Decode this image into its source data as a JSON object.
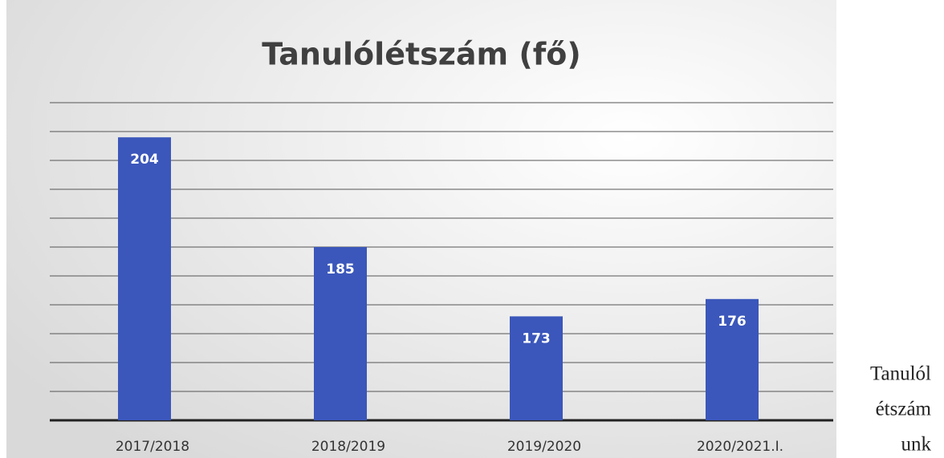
{
  "chart_data": {
    "type": "bar",
    "title": "Tanulólétszám (fő)",
    "categories": [
      "2017/2018",
      "2018/2019",
      "2019/2020",
      "2020/2021.I."
    ],
    "values": [
      204,
      185,
      173,
      176
    ],
    "color": "#3b57bb",
    "ylim": [
      155,
      210
    ],
    "yticks": [
      160,
      165,
      170,
      175,
      180,
      185,
      190,
      195,
      200,
      205,
      210
    ],
    "grid": true
  },
  "side_text": [
    "Tanulól",
    "étszám",
    "unk"
  ]
}
